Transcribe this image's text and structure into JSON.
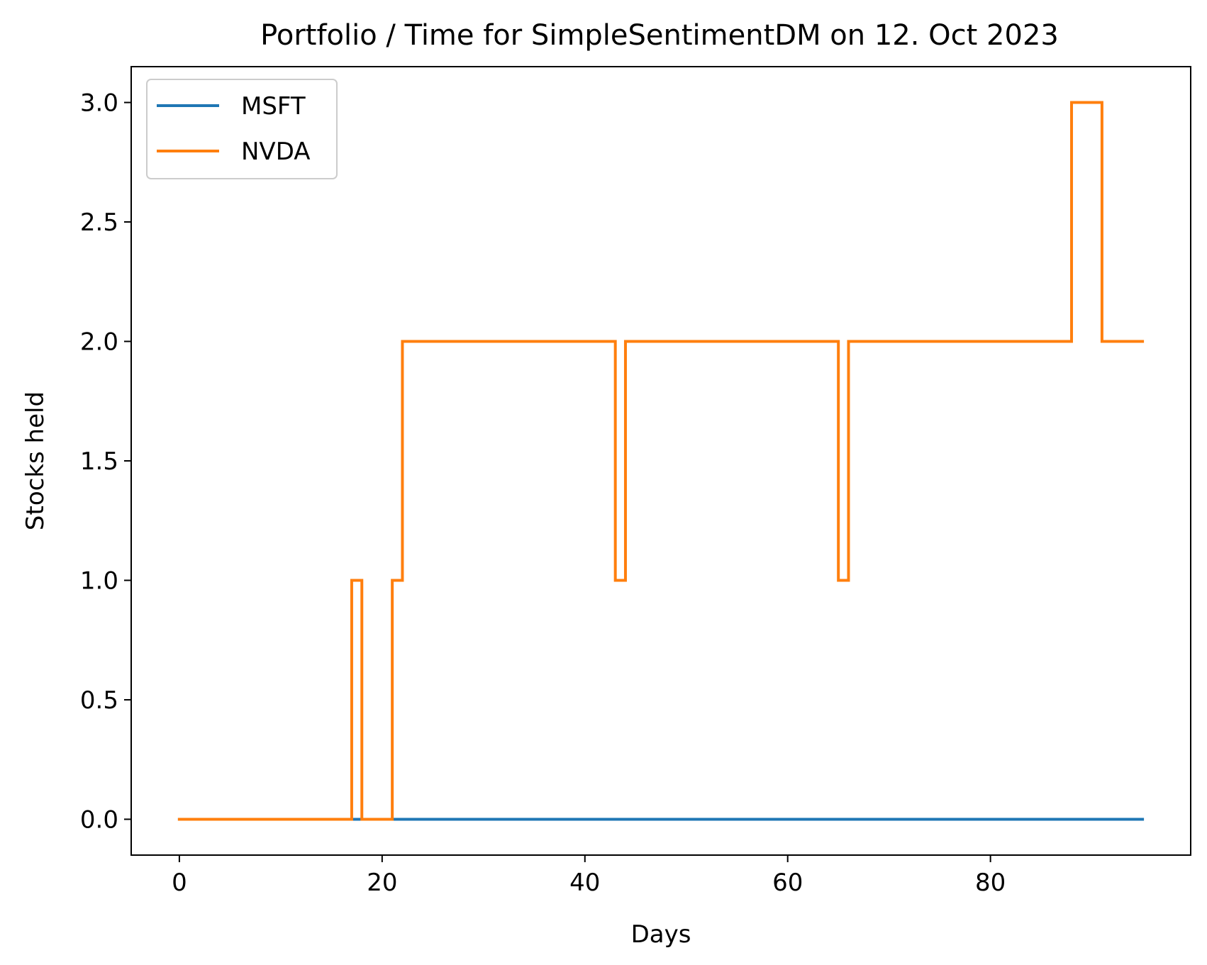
{
  "chart_data": {
    "type": "line",
    "title": "Portfolio / Time for SimpleSentimentDM on 12. Oct 2023",
    "xlabel": "Days",
    "ylabel": "Stocks held",
    "xlim": [
      -4.75,
      99.75
    ],
    "ylim": [
      -0.15,
      3.15
    ],
    "xticks": [
      0,
      20,
      40,
      60,
      80
    ],
    "xtick_labels": [
      "0",
      "20",
      "40",
      "60",
      "80"
    ],
    "yticks": [
      0.0,
      0.5,
      1.0,
      1.5,
      2.0,
      2.5,
      3.0
    ],
    "ytick_labels": [
      "0.0",
      "0.5",
      "1.0",
      "1.5",
      "2.0",
      "2.5",
      "3.0"
    ],
    "grid": false,
    "legend_position": "upper left",
    "series": [
      {
        "name": "MSFT",
        "color": "#1f77b4",
        "step": "post",
        "x": [
          0,
          95
        ],
        "y": [
          0,
          0
        ]
      },
      {
        "name": "NVDA",
        "color": "#ff7f0e",
        "step": "post",
        "x": [
          0,
          17,
          18,
          21,
          22,
          43,
          44,
          65,
          66,
          88,
          91,
          95
        ],
        "y": [
          0,
          1,
          0,
          1,
          2,
          1,
          2,
          1,
          2,
          3,
          2,
          2
        ]
      }
    ]
  }
}
